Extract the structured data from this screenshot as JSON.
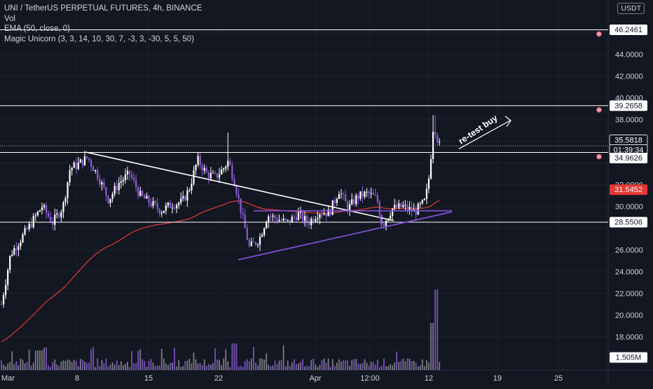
{
  "legend": {
    "symbol": "UNI / TetherUS PERPETUAL FUTURES, 4h, BINANCE",
    "vol": "Vol",
    "ema": "EMA (50, close, 0)",
    "indicator": "Magic Unicorn (3, 3, 14, 10, 30, 7, -3, 3, -30, 5, 5, 50)"
  },
  "currency": "USDT",
  "annotation": "re-test buy",
  "price_scale": {
    "ticks": [
      "44.0000",
      "42.0000",
      "40.0000",
      "38.0000",
      "32.0000",
      "30.0000",
      "26.0000",
      "24.0000",
      "22.0000",
      "20.0000",
      "18.0000"
    ],
    "badges": [
      {
        "label": "46.2461",
        "style": "light"
      },
      {
        "label": "39.2658",
        "style": "light"
      },
      {
        "label": "35.5818",
        "style": "dark"
      },
      {
        "label": "01:39:34",
        "style": "dark"
      },
      {
        "label": "34.9626",
        "style": "light"
      },
      {
        "label": "31.5452",
        "style": "red"
      },
      {
        "label": "28.5506",
        "style": "light"
      },
      {
        "label": "1.505M",
        "style": "light"
      }
    ]
  },
  "time_axis": [
    "Mar",
    "8",
    "15",
    "22",
    "Apr",
    "12:00",
    "12",
    "19",
    "25"
  ],
  "levels": [
    46.2461,
    39.2658,
    34.9626,
    28.5506
  ],
  "colors": {
    "background": "#131722",
    "grid": "#1e222d",
    "text": "#d1d4dc",
    "candle_up": "#ffffff",
    "candle_down": "#8c5cd6",
    "ema": "#e53935",
    "trend": "#ffffff",
    "triangle": "#7b4fd0",
    "volume": "#8c8c98"
  }
}
